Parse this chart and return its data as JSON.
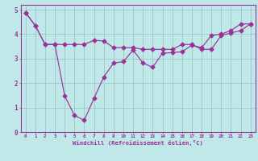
{
  "background_color": "#c0e8e8",
  "grid_color": "#a0cccc",
  "line_color": "#993399",
  "xlabel": "Windchill (Refroidissement éolien,°C)",
  "xlim": [
    -0.5,
    23.5
  ],
  "ylim": [
    0,
    5.2
  ],
  "xticks": [
    0,
    1,
    2,
    3,
    4,
    5,
    6,
    7,
    8,
    9,
    10,
    11,
    12,
    13,
    14,
    15,
    16,
    17,
    18,
    19,
    20,
    21,
    22,
    23
  ],
  "yticks": [
    0,
    1,
    2,
    3,
    4,
    5
  ],
  "line1_x": [
    0,
    1,
    2,
    3,
    4,
    5,
    6,
    7,
    8,
    9,
    10,
    11,
    12,
    13,
    14,
    15,
    16,
    17,
    18,
    19,
    20,
    21,
    22,
    23
  ],
  "line1_y": [
    4.88,
    4.35,
    3.58,
    3.58,
    1.48,
    0.68,
    0.48,
    1.38,
    2.25,
    2.82,
    2.88,
    3.35,
    2.82,
    2.65,
    3.22,
    3.25,
    3.28,
    3.55,
    3.45,
    3.95,
    4.0,
    4.15,
    4.42,
    4.42
  ],
  "line2_x": [
    0,
    1,
    2,
    3,
    4,
    5,
    6,
    7,
    8,
    9,
    10,
    11,
    12,
    13,
    14,
    15,
    16,
    17,
    18,
    19,
    20,
    21,
    22,
    23
  ],
  "line2_y": [
    4.88,
    4.35,
    3.58,
    3.58,
    3.58,
    3.58,
    3.58,
    3.75,
    3.72,
    3.45,
    3.45,
    3.45,
    3.38,
    3.38,
    3.38,
    3.38,
    3.58,
    3.58,
    3.38,
    3.38,
    3.95,
    4.05,
    4.15,
    4.42
  ]
}
